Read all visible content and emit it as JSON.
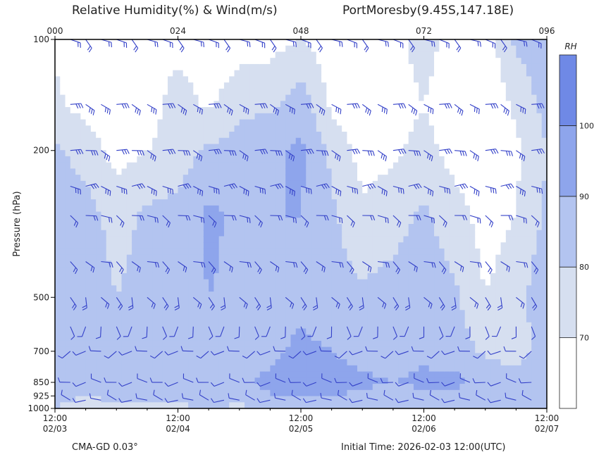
{
  "header": {
    "title_left": "Relative Humidity(%) & Wind(m/s)",
    "title_right": "PortMoresby(9.45S,147.18E)"
  },
  "footer": {
    "left": "CMA-GD 0.03°",
    "right": "Initial Time: 2026-02-03 12:00(UTC)"
  },
  "chart_data": {
    "type": "heatmap",
    "title": "Relative Humidity(%) & Wind(m/s)",
    "location": "PortMoresby(9.45S,147.18E)",
    "ylabel": "Pressure (hPa)",
    "y_scale": "log",
    "y_ticks": [
      100,
      200,
      500,
      700,
      850,
      925,
      1000
    ],
    "ylim": [
      1000,
      100
    ],
    "top_ticks": [
      "000",
      "024",
      "048",
      "072",
      "096"
    ],
    "x_ticks": [
      {
        "time": "12:00",
        "date": "02/03"
      },
      {
        "time": "12:00",
        "date": "02/04"
      },
      {
        "time": "12:00",
        "date": "02/05"
      },
      {
        "time": "12:00",
        "date": "02/06"
      },
      {
        "time": "12:00",
        "date": "02/07"
      }
    ],
    "xlim_hours": [
      0,
      96
    ],
    "colorbar": {
      "label": "RH",
      "levels": [
        70,
        80,
        90,
        100
      ],
      "colors": [
        "#ffffff",
        "#d6dff0",
        "#b3c4f0",
        "#8ea5ec",
        "#6f89e6"
      ]
    },
    "colors": {
      "barb": "#3340c8",
      "contour": "#4a5a8a",
      "frame": "#000000"
    },
    "rh_profiles": {
      "levels_hpa": [
        1000,
        925,
        850,
        700,
        500,
        300,
        200,
        150,
        100
      ],
      "series": [
        {
          "hour": 0,
          "rh": [
            80,
            82,
            84,
            88,
            90,
            86,
            82,
            72,
            68
          ]
        },
        {
          "hour": 6,
          "rh": [
            78,
            80,
            84,
            88,
            86,
            84,
            76,
            66,
            64
          ]
        },
        {
          "hour": 12,
          "rh": [
            76,
            82,
            86,
            84,
            80,
            76,
            66,
            62,
            62
          ]
        },
        {
          "hour": 18,
          "rh": [
            74,
            84,
            88,
            86,
            84,
            82,
            70,
            64,
            64
          ]
        },
        {
          "hour": 24,
          "rh": [
            78,
            84,
            86,
            84,
            86,
            84,
            74,
            76,
            66
          ]
        },
        {
          "hour": 30,
          "rh": [
            80,
            86,
            88,
            86,
            90,
            92,
            82,
            68,
            62
          ]
        },
        {
          "hour": 36,
          "rh": [
            78,
            84,
            88,
            86,
            88,
            88,
            84,
            78,
            64
          ]
        },
        {
          "hour": 42,
          "rh": [
            82,
            90,
            92,
            88,
            86,
            90,
            88,
            78,
            66
          ]
        },
        {
          "hour": 48,
          "rh": [
            84,
            92,
            94,
            92,
            88,
            90,
            92,
            86,
            70
          ]
        },
        {
          "hour": 54,
          "rh": [
            80,
            90,
            94,
            90,
            84,
            82,
            78,
            68,
            64
          ]
        },
        {
          "hour": 60,
          "rh": [
            82,
            88,
            92,
            86,
            82,
            72,
            66,
            62,
            62
          ]
        },
        {
          "hour": 66,
          "rh": [
            80,
            86,
            90,
            86,
            84,
            76,
            68,
            64,
            66
          ]
        },
        {
          "hour": 72,
          "rh": [
            82,
            88,
            92,
            88,
            86,
            82,
            74,
            70,
            76
          ]
        },
        {
          "hour": 78,
          "rh": [
            80,
            88,
            92,
            86,
            82,
            74,
            66,
            62,
            64
          ]
        },
        {
          "hour": 84,
          "rh": [
            80,
            86,
            88,
            78,
            70,
            66,
            64,
            62,
            64
          ]
        },
        {
          "hour": 90,
          "rh": [
            80,
            86,
            86,
            74,
            76,
            70,
            68,
            72,
            82
          ]
        },
        {
          "hour": 96,
          "rh": [
            82,
            88,
            90,
            86,
            88,
            82,
            80,
            84,
            86
          ]
        }
      ]
    },
    "wind_profiles": {
      "levels_hpa": [
        950,
        850,
        700,
        600,
        500,
        400,
        300,
        250,
        200,
        150,
        100
      ],
      "speed_ms": [
        4,
        6,
        5,
        6,
        8,
        10,
        12,
        14,
        16,
        14,
        12
      ],
      "direction_deg": [
        280,
        270,
        250,
        180,
        150,
        120,
        110,
        100,
        100,
        110,
        120
      ]
    }
  }
}
